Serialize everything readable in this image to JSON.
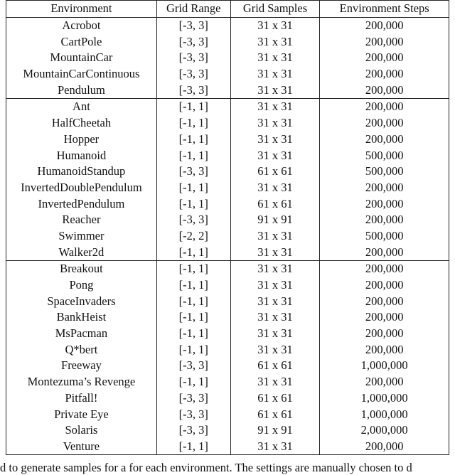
{
  "table": {
    "headers": [
      "Environment",
      "Grid Range",
      "Grid Samples",
      "Environment Steps"
    ],
    "groups": [
      [
        [
          "Acrobot",
          "[-3, 3]",
          "31 x 31",
          "200,000"
        ],
        [
          "CartPole",
          "[-3, 3]",
          "31 x 31",
          "200,000"
        ],
        [
          "MountainCar",
          "[-3, 3]",
          "31 x 31",
          "200,000"
        ],
        [
          "MountainCarContinuous",
          "[-3, 3]",
          "31 x 31",
          "200,000"
        ],
        [
          "Pendulum",
          "[-3, 3]",
          "31 x 31",
          "200,000"
        ]
      ],
      [
        [
          "Ant",
          "[-1, 1]",
          "31 x 31",
          "200,000"
        ],
        [
          "HalfCheetah",
          "[-1, 1]",
          "31 x 31",
          "200,000"
        ],
        [
          "Hopper",
          "[-1, 1]",
          "31 x 31",
          "200,000"
        ],
        [
          "Humanoid",
          "[-1, 1]",
          "31 x 31",
          "500,000"
        ],
        [
          "HumanoidStandup",
          "[-3, 3]",
          "61 x 61",
          "500,000"
        ],
        [
          "InvertedDoublePendulum",
          "[-1, 1]",
          "31 x 31",
          "200,000"
        ],
        [
          "InvertedPendulum",
          "[-1, 1]",
          "61 x 61",
          "200,000"
        ],
        [
          "Reacher",
          "[-3, 3]",
          "91 x 91",
          "200,000"
        ],
        [
          "Swimmer",
          "[-2, 2]",
          "31 x 31",
          "500,000"
        ],
        [
          "Walker2d",
          "[-1, 1]",
          "31 x 31",
          "200,000"
        ]
      ],
      [
        [
          "Breakout",
          "[-1, 1]",
          "31 x 31",
          "200,000"
        ],
        [
          "Pong",
          "[-1, 1]",
          "31 x 31",
          "200,000"
        ],
        [
          "SpaceInvaders",
          "[-1, 1]",
          "31 x 31",
          "200,000"
        ],
        [
          "BankHeist",
          "[-1, 1]",
          "31 x 31",
          "200,000"
        ],
        [
          "MsPacman",
          "[-1, 1]",
          "31 x 31",
          "200,000"
        ],
        [
          "Q*bert",
          "[-1, 1]",
          "31 x 31",
          "200,000"
        ],
        [
          "Freeway",
          "[-3, 3]",
          "61 x 61",
          "1,000,000"
        ],
        [
          "Montezuma’s Revenge",
          "[-1, 1]",
          "31 x 31",
          "200,000"
        ],
        [
          "Pitfall!",
          "[-3, 3]",
          "61 x 61",
          "1,000,000"
        ],
        [
          "Private Eye",
          "[-3, 3]",
          "61 x 61",
          "1,000,000"
        ],
        [
          "Solaris",
          "[-3, 3]",
          "91 x 91",
          "2,000,000"
        ],
        [
          "Venture",
          "[-1, 1]",
          "31 x 31",
          "200,000"
        ]
      ]
    ]
  },
  "caption_fragment": "d to generate samples for a for each environment. The settings are manually chosen to d"
}
